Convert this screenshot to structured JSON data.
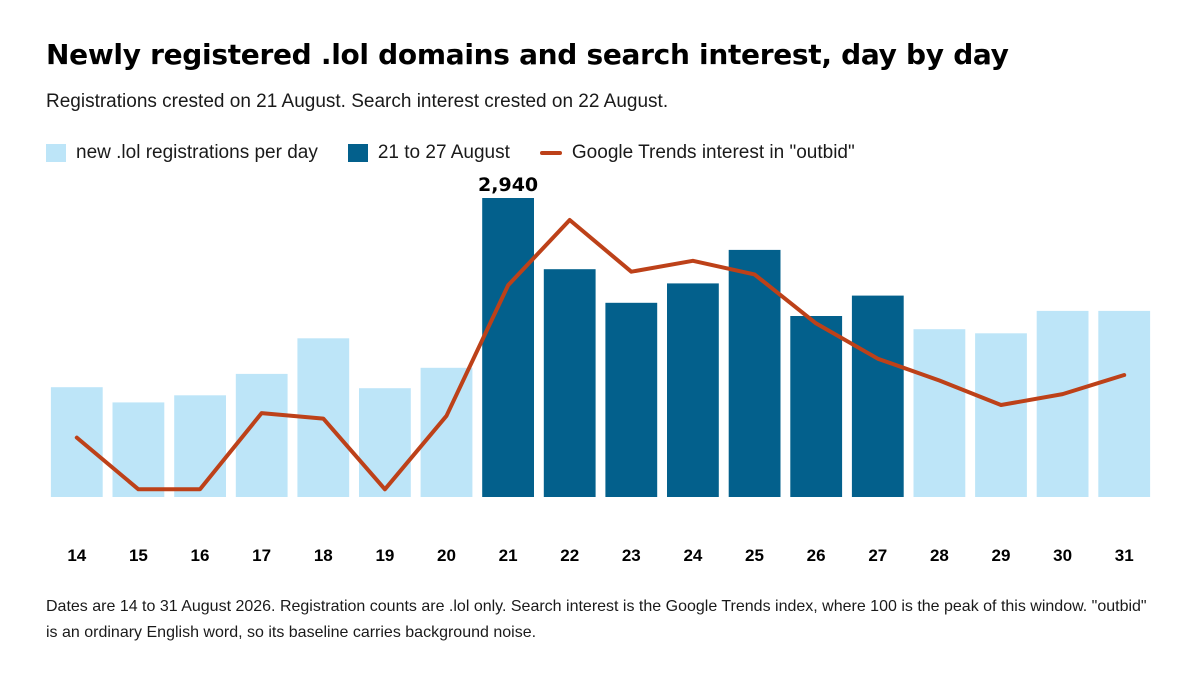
{
  "title": "Newly registered .lol domains and search interest, day by day",
  "subtitle": "Registrations crested on 21 August. Search interest crested on 22 August.",
  "legend": {
    "base": "new .lol registrations per day",
    "highlight": "21 to 27 August",
    "line": "Google Trends interest in \"outbid\""
  },
  "colors": {
    "base_bar": "#bde5f8",
    "highlight_bar": "#03608c",
    "line": "#bd4119",
    "label": "#000000"
  },
  "footnote": "Dates are 14 to 31 August 2026. Registration counts are .lol only. Search interest is the Google Trends index, where 100 is the peak of this window. \"outbid\" is an ordinary English word, so its baseline carries background noise.",
  "chart_data": {
    "type": "bar",
    "categories": [
      "14",
      "15",
      "16",
      "17",
      "18",
      "19",
      "20",
      "21",
      "22",
      "23",
      "24",
      "25",
      "26",
      "27",
      "28",
      "29",
      "30",
      "31"
    ],
    "series": [
      {
        "name": "new .lol registrations per day",
        "values": [
          1080,
          930,
          1000,
          1210,
          1560,
          1070,
          1270,
          2940,
          2240,
          1910,
          2100,
          2430,
          1780,
          1980,
          1650,
          1610,
          1830,
          1830
        ]
      },
      {
        "name": "Google Trends interest in \"outbid\"",
        "type": "line",
        "values": [
          20,
          1,
          1,
          29,
          27,
          1,
          28,
          76,
          100,
          81,
          85,
          80,
          62,
          49,
          41,
          32,
          36,
          43
        ]
      }
    ],
    "highlight_range": [
      "21",
      "27"
    ],
    "data_labels": [
      {
        "category": "21",
        "text": "2,940"
      }
    ],
    "ylim": [
      0,
      2940
    ],
    "y2lim": [
      0,
      100
    ],
    "grid": false,
    "legend_position": "top-left"
  }
}
